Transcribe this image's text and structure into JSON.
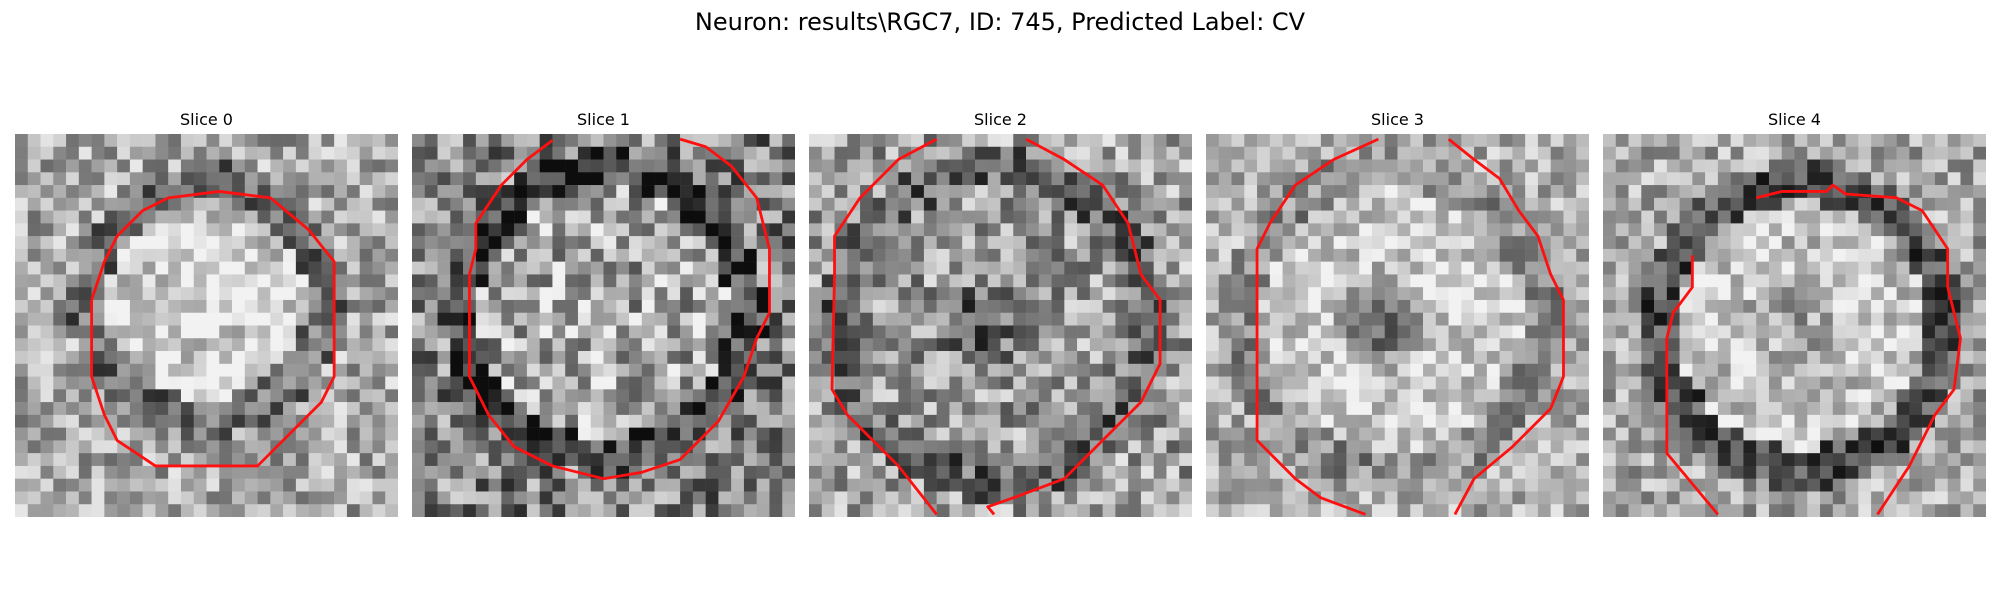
{
  "figure": {
    "title": "Neuron: results\\RGC7, ID: 745, Predicted Label: CV"
  },
  "colors": {
    "contour": "#ff1010",
    "background": "#ffffff"
  },
  "panels": [
    {
      "title": "Slice 0"
    },
    {
      "title": "Slice 1"
    },
    {
      "title": "Slice 2"
    },
    {
      "title": "Slice 3"
    },
    {
      "title": "Slice 4"
    }
  ]
}
